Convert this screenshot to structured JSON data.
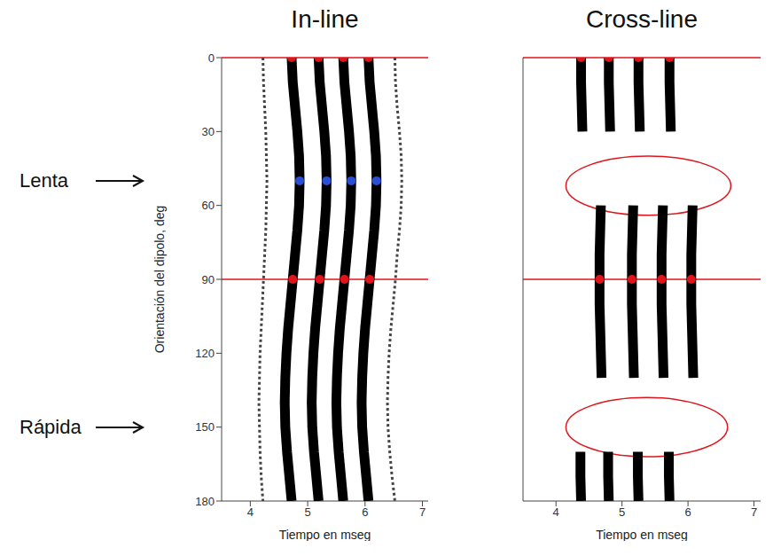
{
  "chart_data": [
    {
      "type": "line",
      "title": "In-line",
      "xlabel": "Tiempo en mseg",
      "ylabel": "Orientación del dipolo, deg",
      "xlim": [
        3.5,
        7.1
      ],
      "xticks": [
        4,
        5,
        6,
        7
      ],
      "ylim": [
        0,
        180
      ],
      "yticks": [
        0,
        30,
        60,
        90,
        120,
        150,
        180
      ],
      "y": [
        0,
        10,
        20,
        30,
        40,
        50,
        60,
        70,
        80,
        90,
        100,
        110,
        120,
        130,
        140,
        150,
        160,
        170,
        180
      ],
      "series": [
        {
          "color": "#444444",
          "line_style": "dashed",
          "values": [
            4.22,
            4.23,
            4.25,
            4.27,
            4.28,
            4.29,
            4.28,
            4.27,
            4.25,
            4.23,
            4.21,
            4.19,
            4.17,
            4.16,
            4.15,
            4.16,
            4.17,
            4.19,
            4.22
          ]
        },
        {
          "color": "#000000",
          "line_style": "solid",
          "values": [
            4.72,
            4.74,
            4.78,
            4.82,
            4.85,
            4.86,
            4.85,
            4.82,
            4.78,
            4.74,
            4.7,
            4.66,
            4.63,
            4.61,
            4.6,
            4.61,
            4.64,
            4.68,
            4.72
          ]
        },
        {
          "color": "#000000",
          "line_style": "solid",
          "values": [
            5.19,
            5.21,
            5.25,
            5.29,
            5.32,
            5.33,
            5.32,
            5.29,
            5.25,
            5.21,
            5.17,
            5.13,
            5.1,
            5.08,
            5.07,
            5.08,
            5.11,
            5.15,
            5.19
          ]
        },
        {
          "color": "#000000",
          "line_style": "solid",
          "values": [
            5.62,
            5.64,
            5.68,
            5.72,
            5.75,
            5.76,
            5.75,
            5.72,
            5.68,
            5.64,
            5.6,
            5.56,
            5.53,
            5.51,
            5.5,
            5.51,
            5.54,
            5.58,
            5.62
          ]
        },
        {
          "color": "#000000",
          "line_style": "solid",
          "values": [
            6.06,
            6.08,
            6.12,
            6.16,
            6.19,
            6.2,
            6.19,
            6.16,
            6.12,
            6.08,
            6.04,
            6.0,
            5.97,
            5.95,
            5.94,
            5.95,
            5.98,
            6.02,
            6.06
          ]
        },
        {
          "color": "#444444",
          "line_style": "dashed",
          "values": [
            6.52,
            6.53,
            6.56,
            6.6,
            6.63,
            6.64,
            6.63,
            6.6,
            6.56,
            6.53,
            6.49,
            6.45,
            6.42,
            6.4,
            6.39,
            6.4,
            6.43,
            6.47,
            6.52
          ]
        },
        {
          "type": "scatter",
          "marker": "circle",
          "color": "#e0151b",
          "x": [
            4.72,
            5.19,
            5.62,
            6.06,
            4.74,
            5.21,
            5.64,
            6.08
          ],
          "y": [
            0,
            0,
            0,
            0,
            90,
            90,
            90,
            90
          ]
        },
        {
          "type": "scatter",
          "marker": "circle",
          "color": "#2a4fd6",
          "x": [
            4.86,
            5.33,
            5.76,
            6.2
          ],
          "y": [
            50,
            50,
            50,
            50
          ]
        }
      ],
      "reference_lines": [
        {
          "y": 0,
          "color": "#e0151b"
        },
        {
          "y": 90,
          "color": "#e0151b"
        }
      ],
      "annotations": [
        {
          "text": "Lenta",
          "y": 50
        },
        {
          "text": "Rápida",
          "y": 150
        }
      ]
    },
    {
      "type": "line",
      "title": "Cross-line",
      "xlabel": "Tiempo en mseg",
      "xlim": [
        3.5,
        7.1
      ],
      "xticks": [
        4,
        5,
        6,
        7
      ],
      "ylim": [
        0,
        180
      ],
      "yticks": [
        0,
        30,
        60,
        90,
        120,
        150,
        180
      ],
      "tick_labels": "x",
      "y": [
        0,
        10,
        20,
        30,
        40,
        50,
        60,
        70,
        80,
        90,
        100,
        110,
        120,
        130,
        140,
        150,
        160,
        170,
        180
      ],
      "series": [
        {
          "color": "#000000",
          "line_style": "solid",
          "values": [
            4.38,
            4.38,
            4.39,
            4.4,
            null,
            null,
            4.68,
            4.67,
            4.66,
            4.66,
            4.66,
            4.67,
            4.68,
            4.69,
            null,
            null,
            4.37,
            4.37,
            4.38
          ]
        },
        {
          "color": "#000000",
          "line_style": "solid",
          "values": [
            4.8,
            4.8,
            4.81,
            4.82,
            null,
            null,
            5.17,
            5.16,
            5.15,
            5.15,
            5.15,
            5.16,
            5.17,
            5.18,
            null,
            null,
            4.79,
            4.79,
            4.8
          ]
        },
        {
          "color": "#000000",
          "line_style": "solid",
          "values": [
            5.25,
            5.25,
            5.26,
            5.27,
            null,
            null,
            5.62,
            5.61,
            5.6,
            5.6,
            5.6,
            5.61,
            5.62,
            5.63,
            null,
            null,
            5.24,
            5.24,
            5.25
          ]
        },
        {
          "color": "#000000",
          "line_style": "solid",
          "values": [
            5.72,
            5.72,
            5.73,
            5.74,
            null,
            null,
            6.07,
            6.06,
            6.05,
            6.05,
            6.05,
            6.06,
            6.07,
            6.08,
            null,
            null,
            5.71,
            5.71,
            5.72
          ]
        },
        {
          "type": "scatter",
          "marker": "circle",
          "color": "#e0151b",
          "x": [
            4.38,
            4.8,
            5.25,
            5.72,
            4.66,
            5.15,
            5.6,
            6.05
          ],
          "y": [
            0,
            0,
            0,
            0,
            90,
            90,
            90,
            90
          ]
        }
      ],
      "reference_lines": [
        {
          "y": 0,
          "color": "#e0151b"
        },
        {
          "y": 90,
          "color": "#e0151b"
        }
      ],
      "highlights": [
        {
          "x": [
            4.15,
            6.65
          ],
          "y": [
            40,
            64
          ],
          "color": "#e0151b"
        },
        {
          "x": [
            4.15,
            6.6
          ],
          "y": [
            138,
            162
          ],
          "color": "#e0151b"
        }
      ]
    }
  ]
}
